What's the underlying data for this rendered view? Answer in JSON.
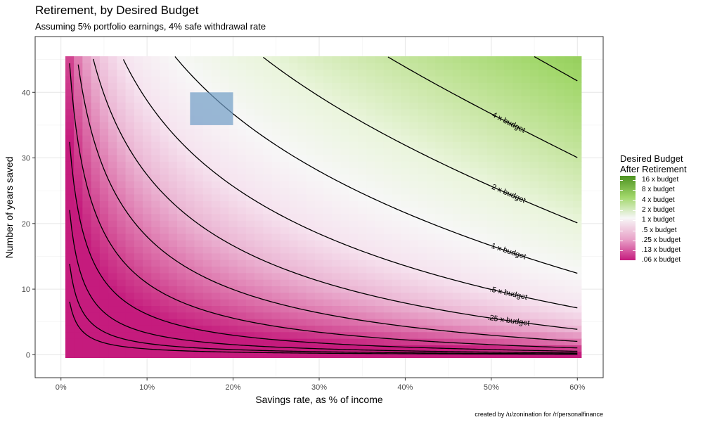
{
  "header": {
    "title": "Retirement, by Desired Budget",
    "subtitle": "Assuming 5% portfolio earnings, 4% safe withdrawal rate"
  },
  "caption": "created by /u/zonination for /r/personalfinance",
  "legend": {
    "title_line1": "Desired Budget",
    "title_line2": "After Retirement",
    "items": [
      "16 x budget",
      "8 x budget",
      "4 x budget",
      "2 x budget",
      "1 x budget",
      ".5 x budget",
      ".25 x budget",
      ".13 x budget",
      ".06 x budget"
    ]
  },
  "colors": {
    "high": "#4d9221",
    "mid_high": "#a1d76a",
    "neutral": "#f7f7f7",
    "mid_low": "#e9a3c9",
    "low": "#c51b7d",
    "highlight": "#6f9cc6"
  },
  "chart_data": {
    "type": "heatmap",
    "title": "Retirement, by Desired Budget",
    "subtitle": "Assuming 5% portfolio earnings, 4% safe withdrawal rate",
    "xlabel": "Savings rate, as % of income",
    "ylabel": "Number of years saved",
    "xlim": [
      -3,
      63
    ],
    "ylim": [
      -3.5,
      48.5
    ],
    "x_ticks": [
      0,
      10,
      20,
      30,
      40,
      50,
      60
    ],
    "x_tick_labels": [
      "0%",
      "10%",
      "20%",
      "30%",
      "40%",
      "50%",
      "60%"
    ],
    "y_ticks": [
      0,
      10,
      20,
      30,
      40
    ],
    "y_tick_labels": [
      "0",
      "10",
      "20",
      "30",
      "40"
    ],
    "x_range": [
      1,
      60
    ],
    "y_range": [
      0,
      45
    ],
    "contour_levels": [
      0.00390625,
      0.0078125,
      0.015625,
      0.03125,
      0.0625,
      0.125,
      0.25,
      0.5,
      1,
      2,
      4,
      8
    ],
    "contour_labels": [
      {
        "text": ".25 x budget",
        "level": 0.25,
        "x": 52
      },
      {
        "text": ".5 x budget",
        "level": 0.5,
        "x": 52
      },
      {
        "text": "1 x budget",
        "level": 1,
        "x": 52
      },
      {
        "text": "2 x budget",
        "level": 2,
        "x": 52
      },
      {
        "text": "4 x budget",
        "level": 4,
        "x": 52
      }
    ],
    "highlight_box": {
      "x": [
        15,
        20
      ],
      "y": [
        35,
        40
      ]
    },
    "legend_placement": "right",
    "grid": true
  }
}
